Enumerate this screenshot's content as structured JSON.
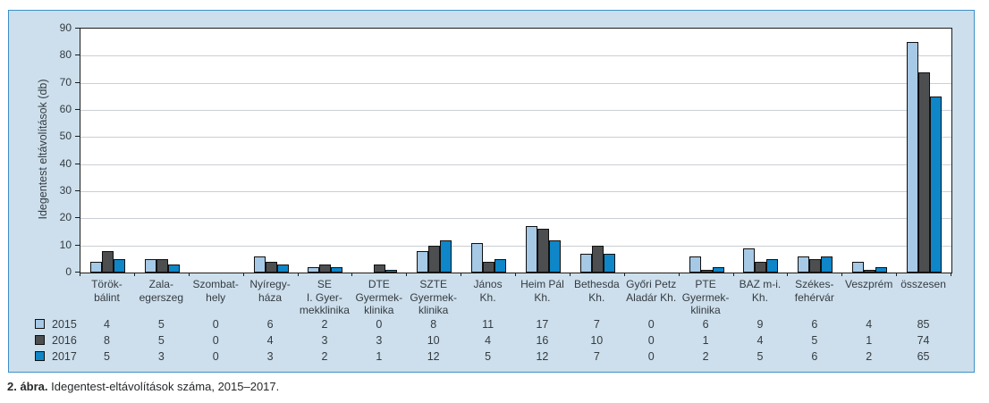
{
  "figure": {
    "caption_label": "2. ábra.",
    "caption_text": " Idegentest-eltávolítások száma, 2015–2017."
  },
  "colors": {
    "panel_background": "#cddfec",
    "panel_border": "#3c90c6",
    "plot_background": "#ffffff",
    "plot_border": "#1c1c1c",
    "gridline": "#cbcfd3",
    "text": "#343b41",
    "series_2015": "#a6c9e6",
    "series_2016": "#4c4e50",
    "series_2017": "#0e86c8"
  },
  "chart_data": {
    "type": "bar",
    "title": "",
    "xlabel": "",
    "ylabel": "Idegentest eltávolítások (db)",
    "ylim": [
      0,
      90
    ],
    "ytick_step": 10,
    "grid": true,
    "legend_position": "table-below-left",
    "categories": [
      "Törökbálint",
      "Zalaegerszeg",
      "Szombathely",
      "Nyíregyháza",
      "SE I. Gyermekklinika",
      "DTE Gyermekklinika",
      "SZTE Gyermekklinika",
      "János Kh.",
      "Heim Pál Kh.",
      "Bethesda Kh.",
      "Győri Petz Aladár Kh.",
      "PTE Gyermekklinika",
      "BAZ m-i. Kh.",
      "Székesfehérvár",
      "Veszprém",
      "összesen"
    ],
    "category_lines": [
      [
        "Török-",
        "bálint"
      ],
      [
        "Zala-",
        "egerszeg"
      ],
      [
        "Szombat-",
        "hely"
      ],
      [
        "Nyíregy-",
        "háza"
      ],
      [
        "SE",
        "I. Gyer-",
        "mekklinika"
      ],
      [
        "DTE",
        "Gyermek-",
        "klinika"
      ],
      [
        "SZTE",
        "Gyermek-",
        "klinika"
      ],
      [
        "János",
        "Kh."
      ],
      [
        "Heim Pál",
        "Kh."
      ],
      [
        "Bethesda",
        "Kh."
      ],
      [
        "Győri Petz",
        "Aladár Kh."
      ],
      [
        "PTE",
        "Gyermek-",
        "klinika"
      ],
      [
        "BAZ m-i.",
        "Kh."
      ],
      [
        "Székes-",
        "fehérvár"
      ],
      [
        "Veszprém"
      ],
      [
        "összesen"
      ]
    ],
    "series": [
      {
        "name": "2015",
        "color": "#a6c9e6",
        "values": [
          4,
          5,
          0,
          6,
          2,
          0,
          8,
          11,
          17,
          7,
          0,
          6,
          9,
          6,
          4,
          85
        ]
      },
      {
        "name": "2016",
        "color": "#4c4e50",
        "values": [
          8,
          5,
          0,
          4,
          3,
          3,
          10,
          4,
          16,
          10,
          0,
          1,
          4,
          5,
          1,
          74
        ]
      },
      {
        "name": "2017",
        "color": "#0e86c8",
        "values": [
          5,
          3,
          0,
          3,
          2,
          1,
          12,
          5,
          12,
          7,
          0,
          2,
          5,
          6,
          2,
          65
        ]
      }
    ]
  }
}
